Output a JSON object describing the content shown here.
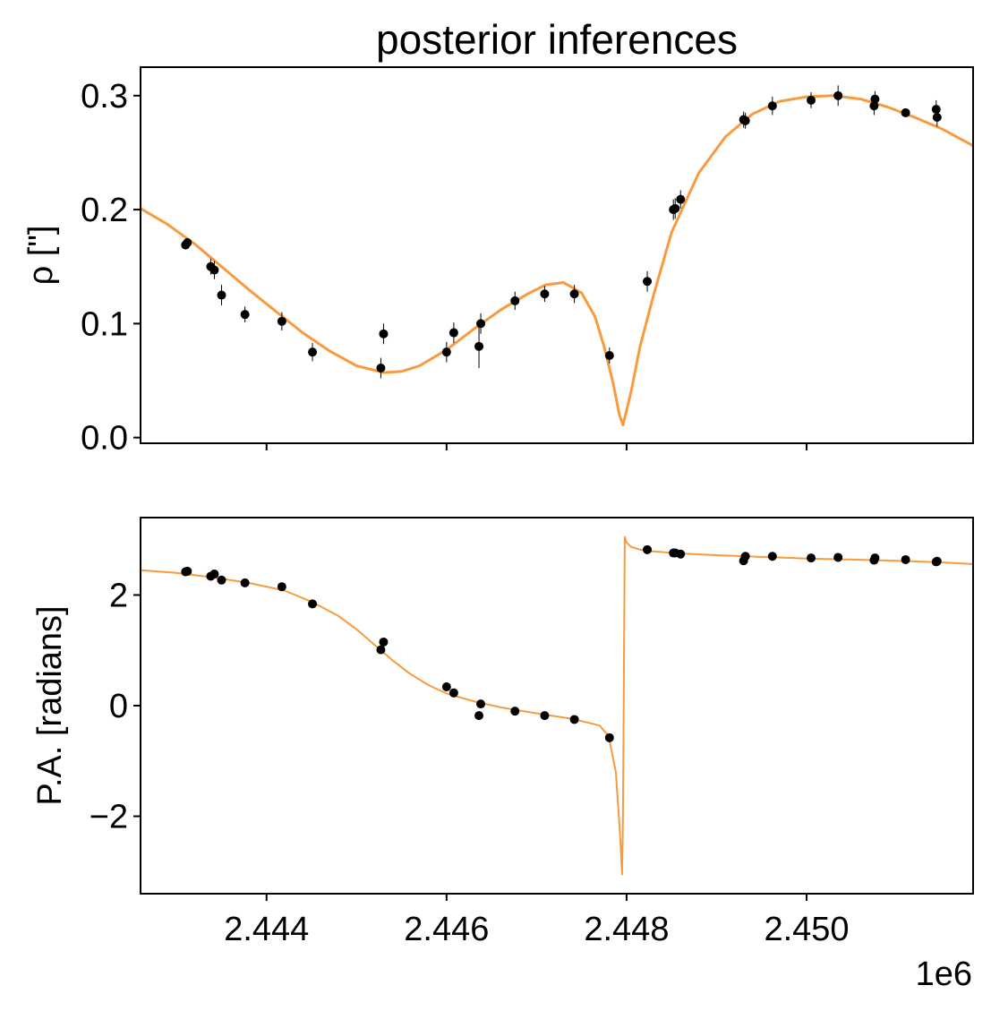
{
  "figure": {
    "title": "posterior inferences",
    "offset_label": "1e6"
  },
  "colors": {
    "model": "#f99a3e",
    "data": "#000000",
    "axis": "#000000",
    "background": "#ffffff"
  },
  "chart_data": [
    {
      "type": "line",
      "title": "posterior inferences",
      "ylabel": "ρ [\"]",
      "xlabel": "",
      "x_offset_label": "1e6",
      "xlim": [
        2442600,
        2451850
      ],
      "ylim": [
        -0.005,
        0.325
      ],
      "yticks": [
        0.0,
        0.1,
        0.2,
        0.3
      ],
      "ytick_labels": [
        "0.0",
        "0.1",
        "0.2",
        "0.3"
      ],
      "xticks": [
        2444000,
        2446000,
        2448000,
        2450000
      ],
      "xtick_labels": [],
      "grid": false,
      "model": {
        "color": "#f99a3e",
        "x": [
          2442600,
          2442900,
          2443200,
          2443500,
          2443800,
          2444100,
          2444400,
          2444700,
          2445000,
          2445300,
          2445500,
          2445700,
          2446000,
          2446300,
          2446600,
          2446900,
          2447100,
          2447300,
          2447500,
          2447650,
          2447750,
          2447850,
          2447920,
          2447960,
          2448050,
          2448150,
          2448300,
          2448500,
          2448800,
          2449100,
          2449400,
          2449700,
          2450000,
          2450300,
          2450600,
          2450900,
          2451200,
          2451500,
          2451850
        ],
        "y": [
          0.201,
          0.187,
          0.17,
          0.15,
          0.13,
          0.111,
          0.092,
          0.076,
          0.063,
          0.057,
          0.058,
          0.063,
          0.077,
          0.095,
          0.112,
          0.126,
          0.134,
          0.136,
          0.127,
          0.106,
          0.08,
          0.048,
          0.02,
          0.011,
          0.04,
          0.08,
          0.125,
          0.18,
          0.232,
          0.264,
          0.284,
          0.295,
          0.299,
          0.3,
          0.297,
          0.29,
          0.281,
          0.271,
          0.256
        ]
      },
      "observations": {
        "x": [
          2443100,
          2443120,
          2443380,
          2443420,
          2443500,
          2443760,
          2444170,
          2444510,
          2445270,
          2445300,
          2446000,
          2446080,
          2446360,
          2446380,
          2446760,
          2447090,
          2447420,
          2447810,
          2448230,
          2448520,
          2448540,
          2448600,
          2449300,
          2449320,
          2449620,
          2450050,
          2450350,
          2450750,
          2450760,
          2451100,
          2451440,
          2451450
        ],
        "y": [
          0.169,
          0.171,
          0.15,
          0.147,
          0.125,
          0.108,
          0.102,
          0.075,
          0.061,
          0.091,
          0.075,
          0.092,
          0.08,
          0.1,
          0.12,
          0.126,
          0.126,
          0.072,
          0.137,
          0.2,
          0.201,
          0.209,
          0.279,
          0.278,
          0.291,
          0.296,
          0.3,
          0.291,
          0.297,
          0.285,
          0.288,
          0.281
        ],
        "yerr": [
          0.004,
          0.004,
          0.007,
          0.008,
          0.009,
          0.007,
          0.008,
          0.008,
          0.009,
          0.009,
          0.009,
          0.009,
          0.019,
          0.009,
          0.008,
          0.007,
          0.008,
          0.007,
          0.009,
          0.009,
          0.009,
          0.008,
          0.007,
          0.007,
          0.008,
          0.007,
          0.009,
          0.008,
          0.007,
          0.003,
          0.008,
          0.008
        ]
      }
    },
    {
      "type": "line",
      "title": "",
      "ylabel": "P.A. [radians]",
      "xlabel": "",
      "x_offset_label": "1e6",
      "xlim": [
        2442600,
        2451850
      ],
      "ylim": [
        -3.4,
        3.4
      ],
      "yticks": [
        -2,
        0,
        2
      ],
      "ytick_labels": [
        "−2",
        "0",
        "2"
      ],
      "xticks": [
        2444000,
        2446000,
        2448000,
        2450000
      ],
      "xtick_labels": [
        "2.444",
        "2.446",
        "2.448",
        "2.450"
      ],
      "grid": false,
      "model": {
        "color": "#f99a3e",
        "x": [
          2442600,
          2443000,
          2443400,
          2443800,
          2444200,
          2444500,
          2444800,
          2445000,
          2445200,
          2445400,
          2445600,
          2445800,
          2446000,
          2446300,
          2446600,
          2447000,
          2447400,
          2447700,
          2447800,
          2447880,
          2447930,
          2447950,
          2447960,
          2447970,
          2447980,
          2448000,
          2448050,
          2448150,
          2448300,
          2448600,
          2449000,
          2449500,
          2450000,
          2450500,
          2451000,
          2451500,
          2451850
        ],
        "y": [
          2.45,
          2.4,
          2.32,
          2.22,
          2.08,
          1.88,
          1.62,
          1.38,
          1.1,
          0.82,
          0.57,
          0.37,
          0.22,
          0.08,
          -0.03,
          -0.14,
          -0.24,
          -0.36,
          -0.55,
          -1.2,
          -2.4,
          -3.05,
          -2.0,
          0.5,
          3.05,
          2.95,
          2.87,
          2.82,
          2.79,
          2.75,
          2.72,
          2.69,
          2.66,
          2.64,
          2.62,
          2.59,
          2.56
        ]
      },
      "observations": {
        "x": [
          2443100,
          2443120,
          2443380,
          2443420,
          2443500,
          2443760,
          2444170,
          2444510,
          2445270,
          2445300,
          2446000,
          2446080,
          2446360,
          2446380,
          2446760,
          2447090,
          2447420,
          2447810,
          2448230,
          2448520,
          2448540,
          2448600,
          2449300,
          2449320,
          2449620,
          2450050,
          2450350,
          2450750,
          2450760,
          2451100,
          2451440,
          2451450
        ],
        "y": [
          2.42,
          2.43,
          2.34,
          2.38,
          2.27,
          2.22,
          2.15,
          1.84,
          1.01,
          1.15,
          0.34,
          0.23,
          -0.18,
          0.03,
          -0.1,
          -0.18,
          -0.25,
          -0.58,
          2.82,
          2.76,
          2.76,
          2.74,
          2.62,
          2.7,
          2.7,
          2.67,
          2.68,
          2.63,
          2.67,
          2.64,
          2.6,
          2.61
        ],
        "yerr": [
          0.03,
          0.03,
          0.03,
          0.03,
          0.03,
          0.03,
          0.03,
          0.03,
          0.03,
          0.03,
          0.03,
          0.03,
          0.03,
          0.03,
          0.03,
          0.03,
          0.03,
          0.03,
          0.03,
          0.03,
          0.03,
          0.03,
          0.03,
          0.03,
          0.03,
          0.03,
          0.03,
          0.03,
          0.03,
          0.03,
          0.03,
          0.03
        ]
      }
    }
  ]
}
